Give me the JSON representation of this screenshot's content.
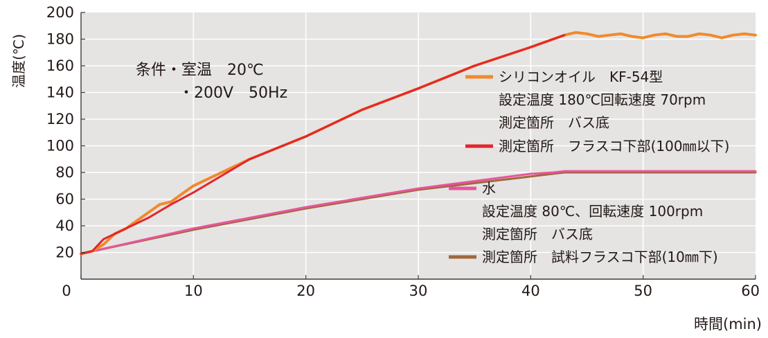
{
  "chart_data": {
    "type": "line",
    "title": "",
    "xlabel": "時間(min)",
    "ylabel": "温度(℃)",
    "xlim": [
      0,
      60
    ],
    "ylim": [
      0,
      200
    ],
    "x_ticks": [
      "0",
      "10",
      "20",
      "30",
      "40",
      "50",
      "60"
    ],
    "y_ticks": [
      "20",
      "40",
      "60",
      "80",
      "100",
      "120",
      "140",
      "160",
      "180",
      "200"
    ],
    "grid": true,
    "conditions": [
      "条件・室温　20℃",
      "・200V　50Hz"
    ],
    "series": [
      {
        "name": "シリコンオイル　KF-54型 測定箇所 バス底",
        "color": "#f08a2c",
        "x": [
          0,
          1,
          2,
          3,
          4,
          5,
          6,
          7,
          8,
          9,
          10,
          15,
          20,
          25,
          30,
          35,
          40,
          43,
          44,
          45,
          46,
          47,
          48,
          49,
          50,
          51,
          52,
          53,
          54,
          55,
          56,
          57,
          58,
          59,
          60
        ],
        "y": [
          19,
          21,
          26,
          34,
          38,
          44,
          50,
          56,
          58,
          64,
          70,
          90,
          107,
          127,
          143,
          160,
          174,
          183,
          185,
          184,
          182,
          183,
          184,
          182,
          181,
          183,
          184,
          182,
          182,
          184,
          183,
          181,
          183,
          184,
          183
        ]
      },
      {
        "name": "測定箇所　フラスコ下部(100㎜以下)",
        "color": "#e3262e",
        "x": [
          0,
          1,
          2,
          3,
          4,
          6,
          8,
          10,
          15,
          20,
          25,
          30,
          35,
          40,
          43
        ],
        "y": [
          19,
          21,
          30,
          34,
          38,
          46,
          56,
          65,
          90,
          107,
          127,
          143,
          160,
          174,
          183
        ]
      },
      {
        "name": "水 測定箇所 バス底",
        "color": "#e9559b",
        "x": [
          0,
          10,
          20,
          30,
          40,
          42,
          43,
          50,
          60
        ],
        "y": [
          19,
          38,
          54,
          68,
          79,
          80,
          81,
          81,
          81
        ]
      },
      {
        "name": "測定箇所　試料フラスコ下部(10㎜下)",
        "color": "#a0683e",
        "x": [
          0,
          10,
          20,
          30,
          40,
          42,
          43,
          50,
          60
        ],
        "y": [
          19,
          37,
          53,
          67,
          77,
          79,
          80,
          80,
          80
        ]
      }
    ],
    "legend": [
      {
        "label": "シリコンオイル　KF-54型",
        "color": "#f08a2c",
        "line": true
      },
      {
        "label": "設定温度 180℃回転速度 70rpm",
        "line": false
      },
      {
        "label": "測定箇所　バス底",
        "line": false
      },
      {
        "label": "測定箇所　フラスコ下部(100㎜以下)",
        "color": "#e3262e",
        "line": true
      },
      {
        "label": "水",
        "color": "#e9559b",
        "line": true
      },
      {
        "label": "設定温度 80℃、回転速度 100rpm",
        "line": false
      },
      {
        "label": "測定箇所　バス底",
        "line": false
      },
      {
        "label": "測定箇所　試料フラスコ下部(10㎜下)",
        "color": "#a0683e",
        "line": true
      }
    ]
  }
}
